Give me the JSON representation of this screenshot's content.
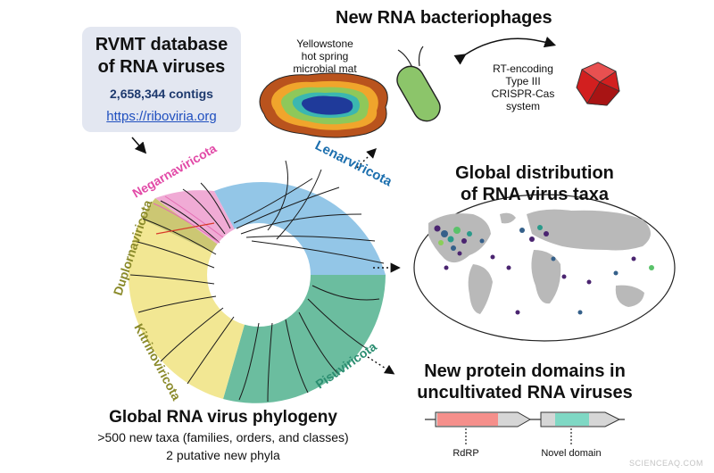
{
  "database": {
    "title_line1": "RVMT database",
    "title_line2": "of RNA viruses",
    "contigs": "2,658,344 contigs",
    "url": "https://riboviria.org"
  },
  "bacteriophages": {
    "title": "New RNA bacteriophages",
    "site_line1": "Yellowstone",
    "site_line2": "hot spring",
    "site_line3": "microbial mat",
    "system_line1": "RT-encoding",
    "system_line2": "Type III",
    "system_line3": "CRISPR-Cas",
    "system_line4": "system"
  },
  "phyla": {
    "lenarviricota": "Lenarviricota",
    "negarnaviricota": "Negarnaviricota",
    "duplornaviricota": "Duplornaviricota",
    "kitrinoviricota": "Kitrinoviricota",
    "pisuviricota": "Pisuviricota"
  },
  "distribution": {
    "title_line1": "Global distribution",
    "title_line2": "of RNA virus taxa"
  },
  "domains": {
    "title_line1": "New protein domains in",
    "title_line2": "uncultivated RNA viruses",
    "rdrp_label": "RdRP",
    "novel_label": "Novel domain"
  },
  "phylogeny": {
    "title": "Global RNA virus phylogeny",
    "line1": ">500 new taxa (families, orders, and classes)",
    "line2": "2 putative new phyla"
  },
  "watermark": "SCIENCEAQ.COM",
  "colors": {
    "lenarviricota": "#5aa7d6",
    "negarnaviricota": "#e46cb3",
    "duplornaviricota": "#9a9a3c",
    "kitrinoviricota": "#eadf7a",
    "pisuviricota": "#45a78c",
    "rdrp": "#f58f8b",
    "novel": "#7fd8c4",
    "phage": "#d21f1f",
    "bacterium": "#8cc56a"
  }
}
